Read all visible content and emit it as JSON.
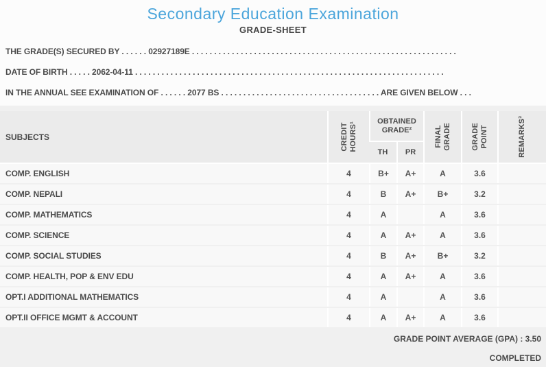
{
  "title": "Secondary Education Examination",
  "subtitle": "GRADE-SHEET",
  "info": {
    "line1": "THE GRADE(S) SECURED BY . . . . . . 02927189E . . . . . . . . . . . . . . . . . . . . . . . . . . . . . . . . . . . . . . . . . . . . . . . . . . . . . . . . . . . .",
    "line2": "DATE OF BIRTH . . . . . 2062-04-11 . . . . . . . . . . . . . . . . . . . . . . . . . . . . . . . . . . . . . . . . . . . . . . . . . . . . . . . . . . . . . . . . . . . . . .",
    "line3": "IN THE ANNUAL SEE EXAMINATION OF . . . . . . 2077 BS . . . . . . . . . . . . . . . . . . . . . . . . . . . . . . . . . . . . ARE GIVEN BELOW . . ."
  },
  "table": {
    "header": {
      "subjects": "SUBJECTS",
      "credit_hours_line1": "CREDIT",
      "credit_hours_line2": "HOURS¹",
      "obtained_grade": "OBTAINED GRADE²",
      "th": "TH",
      "pr": "PR",
      "final_grade_line1": "FINAL",
      "final_grade_line2": "GRADE",
      "grade_point_line1": "GRADE",
      "grade_point_line2": "POINT",
      "remarks": "REMARKS³"
    },
    "rows": [
      {
        "subject": "COMP. ENGLISH",
        "credit": "4",
        "th": "B+",
        "pr": "A+",
        "final": "A",
        "point": "3.6",
        "remarks": ""
      },
      {
        "subject": "COMP. NEPALI",
        "credit": "4",
        "th": "B",
        "pr": "A+",
        "final": "B+",
        "point": "3.2",
        "remarks": ""
      },
      {
        "subject": "COMP. MATHEMATICS",
        "credit": "4",
        "th": "A",
        "pr": "",
        "final": "A",
        "point": "3.6",
        "remarks": ""
      },
      {
        "subject": "COMP. SCIENCE",
        "credit": "4",
        "th": "A",
        "pr": "A+",
        "final": "A",
        "point": "3.6",
        "remarks": ""
      },
      {
        "subject": "COMP. SOCIAL STUDIES",
        "credit": "4",
        "th": "B",
        "pr": "A+",
        "final": "B+",
        "point": "3.2",
        "remarks": ""
      },
      {
        "subject": "COMP. HEALTH, POP & ENV EDU",
        "credit": "4",
        "th": "A",
        "pr": "A+",
        "final": "A",
        "point": "3.6",
        "remarks": ""
      },
      {
        "subject": "OPT.I ADDITIONAL MATHEMATICS",
        "credit": "4",
        "th": "A",
        "pr": "",
        "final": "A",
        "point": "3.6",
        "remarks": ""
      },
      {
        "subject": "OPT.II OFFICE MGMT & ACCOUNT",
        "credit": "4",
        "th": "A",
        "pr": "A+",
        "final": "A",
        "point": "3.6",
        "remarks": ""
      }
    ]
  },
  "footer": {
    "gpa": "GRADE POINT AVERAGE (GPA) : 3.50",
    "status": "COMPLETED"
  },
  "colors": {
    "accent": "#4ba5db",
    "text": "#4a4a4a",
    "header_bg": "#ebebeb",
    "row_bg": "#f8f8f8",
    "lower_bg": "#f0f0f0"
  }
}
